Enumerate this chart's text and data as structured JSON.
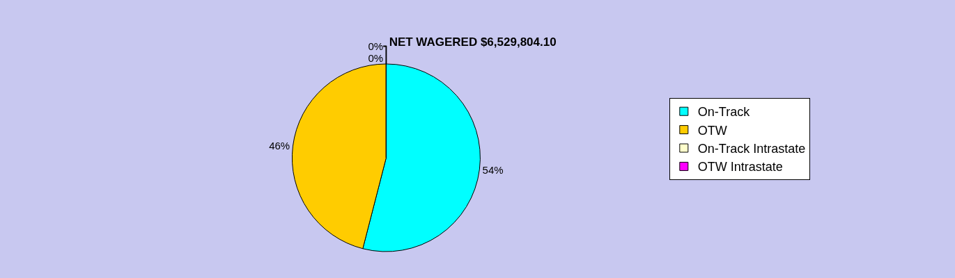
{
  "chart_data": {
    "type": "pie",
    "title": "NET WAGERED $6,529,804.10",
    "categories": [
      "On-Track",
      "OTW",
      "On-Track Intrastate",
      "OTW Intrastate"
    ],
    "values": [
      54,
      46,
      0,
      0
    ],
    "value_labels": [
      "54%",
      "46%",
      "0%",
      "0%"
    ],
    "colors": [
      "#00ffff",
      "#ffcc00",
      "#ffffcc",
      "#ff00ff"
    ],
    "legend": "right"
  }
}
